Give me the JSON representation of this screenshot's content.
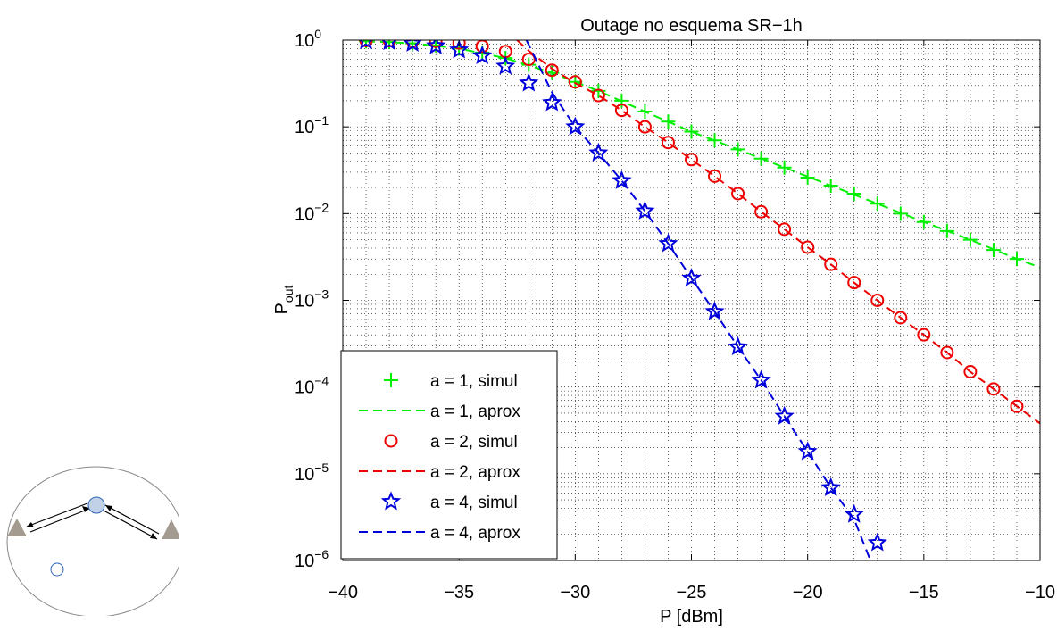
{
  "chart_data": {
    "type": "line",
    "title": "Outage no esquema SR−1h",
    "xlabel": "P [dBm]",
    "ylabel_main": "P",
    "ylabel_sub": "out",
    "y_scale": "log",
    "xlim": [
      -40,
      -10
    ],
    "ylim": [
      1e-06,
      1
    ],
    "x_ticks": [
      -40,
      -35,
      -30,
      -25,
      -20,
      -15,
      -10
    ],
    "x_tick_labels": [
      "−40",
      "−35",
      "−30",
      "−25",
      "−20",
      "−15",
      "−10"
    ],
    "y_ticks": [
      {
        "value": 1,
        "base": "10",
        "exp": "0"
      },
      {
        "value": 0.1,
        "base": "10",
        "exp": "−1"
      },
      {
        "value": 0.01,
        "base": "10",
        "exp": "−2"
      },
      {
        "value": 0.001,
        "base": "10",
        "exp": "−3"
      },
      {
        "value": 0.0001,
        "base": "10",
        "exp": "−4"
      },
      {
        "value": 1e-05,
        "base": "10",
        "exp": "−5"
      },
      {
        "value": 1e-06,
        "base": "10",
        "exp": "−6"
      }
    ],
    "grid": true,
    "legend_position": "bottom-left",
    "colors": {
      "a1": "#00ee00",
      "a2": "#ee0000",
      "a4": "#0000dd"
    },
    "series": [
      {
        "name": "a = 1, simul",
        "color": "#00ee00",
        "marker": "plus",
        "line": "none",
        "x": [
          -39,
          -38,
          -37,
          -36,
          -35,
          -34,
          -33,
          -32,
          -31,
          -30,
          -29,
          -28,
          -27,
          -26,
          -25,
          -24,
          -23,
          -22,
          -21,
          -20,
          -19,
          -18,
          -17,
          -16,
          -15,
          -14,
          -13,
          -12,
          -11
        ],
        "y": [
          0.97,
          0.95,
          0.92,
          0.87,
          0.8,
          0.72,
          0.62,
          0.52,
          0.42,
          0.33,
          0.26,
          0.2,
          0.15,
          0.115,
          0.088,
          0.07,
          0.055,
          0.043,
          0.034,
          0.026,
          0.021,
          0.017,
          0.013,
          0.01,
          0.008,
          0.0063,
          0.005,
          0.0038,
          0.003
        ]
      },
      {
        "name": "a = 1, aprox",
        "color": "#00ee00",
        "marker": "none",
        "line": "dashed",
        "x": [
          -39,
          -37,
          -35,
          -33,
          -31,
          -29,
          -27,
          -25,
          -23,
          -21,
          -19,
          -17,
          -15,
          -13,
          -11,
          -10
        ],
        "y": [
          0.97,
          0.92,
          0.8,
          0.62,
          0.42,
          0.26,
          0.15,
          0.088,
          0.055,
          0.034,
          0.021,
          0.013,
          0.008,
          0.005,
          0.003,
          0.0024
        ]
      },
      {
        "name": "a = 2, simul",
        "color": "#ee0000",
        "marker": "circle",
        "line": "none",
        "x": [
          -39,
          -38,
          -37,
          -36,
          -35,
          -34,
          -33,
          -32,
          -31,
          -30,
          -29,
          -28,
          -27,
          -26,
          -25,
          -24,
          -23,
          -22,
          -21,
          -20,
          -19,
          -18,
          -17,
          -16,
          -15,
          -14,
          -13,
          -12,
          -11
        ],
        "y": [
          0.99,
          0.99,
          0.98,
          0.97,
          0.93,
          0.85,
          0.74,
          0.6,
          0.45,
          0.33,
          0.23,
          0.155,
          0.1,
          0.066,
          0.042,
          0.027,
          0.017,
          0.0105,
          0.0066,
          0.0041,
          0.0026,
          0.0016,
          0.001,
          0.00063,
          0.0004,
          0.00025,
          0.00015,
          9.5e-05,
          6e-05
        ]
      },
      {
        "name": "a = 2, aprox",
        "color": "#ee0000",
        "marker": "none",
        "line": "dashed",
        "x": [
          -32.5,
          -32,
          -31,
          -30,
          -29,
          -28,
          -27,
          -26,
          -25,
          -24,
          -23,
          -22,
          -21,
          -20,
          -19,
          -18,
          -17,
          -16,
          -15,
          -14,
          -13,
          -12,
          -11,
          -10
        ],
        "y": [
          1.0,
          0.75,
          0.47,
          0.32,
          0.23,
          0.155,
          0.1,
          0.066,
          0.042,
          0.027,
          0.017,
          0.0105,
          0.0066,
          0.0041,
          0.0026,
          0.0016,
          0.001,
          0.00063,
          0.0004,
          0.00025,
          0.00015,
          9.5e-05,
          6e-05,
          3.8e-05
        ]
      },
      {
        "name": "a = 4, simul",
        "color": "#0000dd",
        "marker": "star",
        "line": "none",
        "x": [
          -39,
          -38,
          -37,
          -36,
          -35,
          -34,
          -33,
          -32,
          -31,
          -30,
          -29,
          -28,
          -27,
          -26,
          -25,
          -24,
          -23,
          -22,
          -21,
          -20,
          -19,
          -18,
          -17
        ],
        "y": [
          0.98,
          0.96,
          0.92,
          0.86,
          0.77,
          0.66,
          0.5,
          0.32,
          0.19,
          0.1,
          0.05,
          0.024,
          0.0107,
          0.0045,
          0.0018,
          0.00074,
          0.00029,
          0.00012,
          4.6e-05,
          1.8e-05,
          6.9e-06,
          3.4e-06,
          1.6e-06
        ]
      },
      {
        "name": "a = 4, aprox",
        "color": "#0000dd",
        "marker": "none",
        "line": "dashed",
        "x": [
          -32.1,
          -31,
          -30,
          -29,
          -28,
          -27,
          -26,
          -25,
          -24,
          -23,
          -22,
          -21,
          -20,
          -19,
          -18,
          -17.3
        ],
        "y": [
          1.0,
          0.25,
          0.1,
          0.05,
          0.024,
          0.0107,
          0.0045,
          0.0018,
          0.00074,
          0.00029,
          0.00012,
          4.6e-05,
          1.8e-05,
          6.9e-06,
          3e-06,
          1e-06
        ]
      }
    ]
  },
  "inset": {
    "icon_names": [
      "relay-network-diagram-icon",
      "terminal-node-icon",
      "relay-node-icon",
      "user-node-icon"
    ],
    "colors": {
      "ellipse_stroke": "#888888",
      "terminal": "#a39a90",
      "relay_fill": "#c2d2e6",
      "relay_stroke": "#2c64b8"
    }
  }
}
